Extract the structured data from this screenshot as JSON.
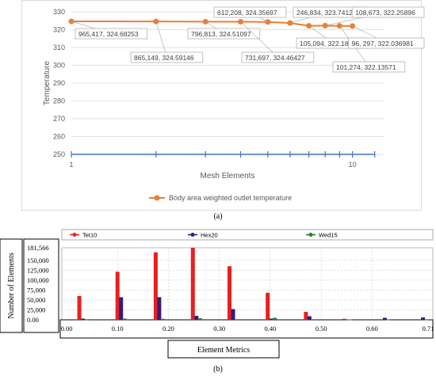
{
  "chart_data": [
    {
      "type": "line",
      "xlabel": "Mesh Elements",
      "ylabel": "Temperature",
      "x_scale": "log",
      "xlim": [
        1,
        13
      ],
      "ylim": [
        250,
        330
      ],
      "yticks": [
        250,
        260,
        270,
        280,
        290,
        300,
        310,
        320,
        330
      ],
      "xticks": [
        "1",
        "10"
      ],
      "grid": true,
      "legend": "bottom",
      "series": [
        {
          "name": "Body area weighted outlet temperature",
          "color": "#ed7d31",
          "points": [
            {
              "x": 1,
              "y": 324.68253,
              "label": "965,417, 324.68253"
            },
            {
              "x": 2,
              "y": 324.59146,
              "label": "865,149, 324.59146"
            },
            {
              "x": 3,
              "y": 324.51097,
              "label": "796,813, 324.51097"
            },
            {
              "x": 4,
              "y": 324.46427,
              "label": "731,697, 324.46427"
            },
            {
              "x": 5,
              "y": 324.35697,
              "label": "612,208, 324.35697"
            },
            {
              "x": 6,
              "y": 323.74125,
              "label": "246,834, 323.74125"
            },
            {
              "x": 7,
              "y": 322.18024,
              "label": "105,094, 322.18024"
            },
            {
              "x": 8,
              "y": 322.25896,
              "label": "108,673, 322.25896"
            },
            {
              "x": 9,
              "y": 322.13571,
              "label": "101,274, 322.13571"
            },
            {
              "x": 10,
              "y": 322.036981,
              "label": "96, 297, 322.036981"
            }
          ]
        },
        {
          "name": "",
          "color": "#4472c4",
          "points": [
            {
              "x": 1,
              "y": 250
            },
            {
              "x": 2,
              "y": 250
            },
            {
              "x": 3,
              "y": 250
            },
            {
              "x": 4,
              "y": 250
            },
            {
              "x": 5,
              "y": 250
            },
            {
              "x": 6,
              "y": 250
            },
            {
              "x": 7,
              "y": 250
            },
            {
              "x": 8,
              "y": 250
            },
            {
              "x": 9,
              "y": 250
            },
            {
              "x": 10,
              "y": 250
            },
            {
              "x": 12,
              "y": 250
            }
          ]
        }
      ]
    },
    {
      "type": "bar",
      "xlabel": "Element Metrics",
      "ylabel": "Number of Elements",
      "ylim": [
        0,
        181566
      ],
      "yticks": [
        "181,566",
        "150,000",
        "125,000",
        "100,000",
        "75,000",
        "50,000",
        "25,000",
        "0.00"
      ],
      "ytick_values": [
        181566,
        150000,
        125000,
        100000,
        75000,
        50000,
        25000,
        0
      ],
      "xticks": [
        "0.00",
        "0.10",
        "0.20",
        "0.30",
        "0.40",
        "0.50",
        "0.60",
        "0.71"
      ],
      "xlim": [
        0,
        0.71
      ],
      "legend": "top",
      "series": [
        {
          "name": "Tet10",
          "color": "#e8201e",
          "points": [
            {
              "x": 0.025,
              "y": 60000
            },
            {
              "x": 0.1,
              "y": 121000
            },
            {
              "x": 0.175,
              "y": 170000
            },
            {
              "x": 0.248,
              "y": 181566
            },
            {
              "x": 0.32,
              "y": 135000
            },
            {
              "x": 0.395,
              "y": 68000
            },
            {
              "x": 0.47,
              "y": 20000
            },
            {
              "x": 0.545,
              "y": 2500
            }
          ]
        },
        {
          "name": "Hex20",
          "color": "#3a1a7a",
          "points": [
            {
              "x": 0.032,
              "y": 3000
            },
            {
              "x": 0.107,
              "y": 57000
            },
            {
              "x": 0.182,
              "y": 57000
            },
            {
              "x": 0.255,
              "y": 10000
            },
            {
              "x": 0.327,
              "y": 27000
            },
            {
              "x": 0.402,
              "y": 3000
            },
            {
              "x": 0.477,
              "y": 9000
            },
            {
              "x": 0.55,
              "y": 1000
            },
            {
              "x": 0.625,
              "y": 5000
            },
            {
              "x": 0.7,
              "y": 6000
            }
          ]
        },
        {
          "name": "Wed15",
          "color": "#2e7d32",
          "points": [
            {
              "x": 0.039,
              "y": 300
            },
            {
              "x": 0.114,
              "y": 3000
            },
            {
              "x": 0.189,
              "y": 2500
            },
            {
              "x": 0.262,
              "y": 4000
            },
            {
              "x": 0.334,
              "y": 1500
            },
            {
              "x": 0.409,
              "y": 5000
            },
            {
              "x": 0.484,
              "y": 1500
            },
            {
              "x": 0.557,
              "y": 800
            },
            {
              "x": 0.632,
              "y": 500
            },
            {
              "x": 0.707,
              "y": 400
            }
          ]
        }
      ]
    }
  ],
  "captions": {
    "a": "(a)",
    "b": "(b)"
  }
}
